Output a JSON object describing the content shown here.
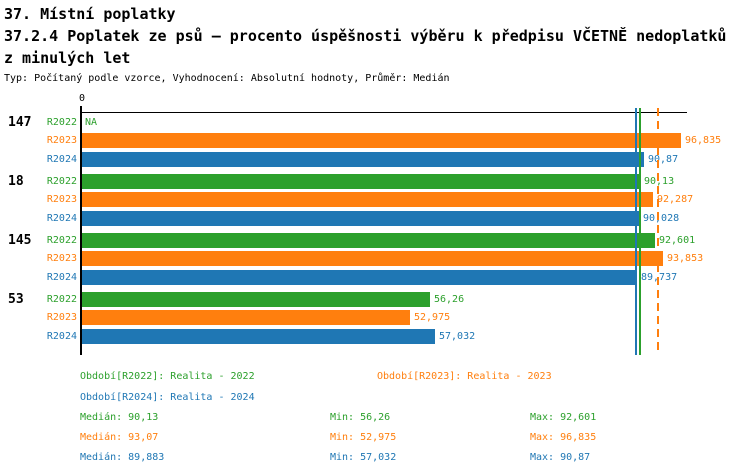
{
  "header": {
    "title": "37. Místní poplatky",
    "subtitle": "37.2.4 Poplatek ze psů – procento úspěšnosti výběru k předpisu VČETNĚ nedoplatků z minulých let",
    "meta": "Typ: Počítaný podle vzorce, Vyhodnocení: Absolutní hodnoty, Průměr: Medián"
  },
  "colors": {
    "R2022": "#2ca02c",
    "R2023": "#ff7f0e",
    "R2024": "#1f77b4",
    "axis": "#000000",
    "background": "#ffffff"
  },
  "chart_data": {
    "type": "bar",
    "orientation": "horizontal",
    "x_axis": {
      "origin_label": "0",
      "min": 0,
      "max": 97.8,
      "grid": false
    },
    "series": [
      "R2022",
      "R2023",
      "R2024"
    ],
    "groups": [
      {
        "label": "147",
        "bars": [
          {
            "series": "R2022",
            "value": null,
            "label": "NA"
          },
          {
            "series": "R2023",
            "value": 96.835,
            "label": "96,835"
          },
          {
            "series": "R2024",
            "value": 90.87,
            "label": "90,87"
          }
        ]
      },
      {
        "label": "18",
        "bars": [
          {
            "series": "R2022",
            "value": 90.13,
            "label": "90,13"
          },
          {
            "series": "R2023",
            "value": 92.287,
            "label": "92,287"
          },
          {
            "series": "R2024",
            "value": 90.028,
            "label": "90,028"
          }
        ]
      },
      {
        "label": "145",
        "bars": [
          {
            "series": "R2022",
            "value": 92.601,
            "label": "92,601"
          },
          {
            "series": "R2023",
            "value": 93.853,
            "label": "93,853"
          },
          {
            "series": "R2024",
            "value": 89.737,
            "label": "89,737"
          }
        ]
      },
      {
        "label": "53",
        "bars": [
          {
            "series": "R2022",
            "value": 56.26,
            "label": "56,26"
          },
          {
            "series": "R2023",
            "value": 52.975,
            "label": "52,975"
          },
          {
            "series": "R2024",
            "value": 57.032,
            "label": "57,032"
          }
        ]
      }
    ],
    "median_lines": [
      {
        "series": "R2022",
        "value": 90.13,
        "style": "solid"
      },
      {
        "series": "R2023",
        "value": 93.07,
        "style": "dashed"
      },
      {
        "series": "R2024",
        "value": 89.883,
        "style": "solid"
      }
    ]
  },
  "legend": {
    "items": [
      {
        "series": "R2022",
        "text": "Období[R2022]: Realita - 2022"
      },
      {
        "series": "R2023",
        "text": "Období[R2023]: Realita - 2023"
      },
      {
        "series": "R2024",
        "text": "Období[R2024]: Realita - 2024"
      }
    ]
  },
  "stats": {
    "rows": [
      {
        "series": "R2022",
        "median": "Medián: 90,13",
        "min": "Min: 56,26",
        "max": "Max: 92,601"
      },
      {
        "series": "R2023",
        "median": "Medián: 93,07",
        "min": "Min: 52,975",
        "max": "Max: 96,835"
      },
      {
        "series": "R2024",
        "median": "Medián: 89,883",
        "min": "Min: 57,032",
        "max": "Max: 90,87"
      }
    ]
  }
}
